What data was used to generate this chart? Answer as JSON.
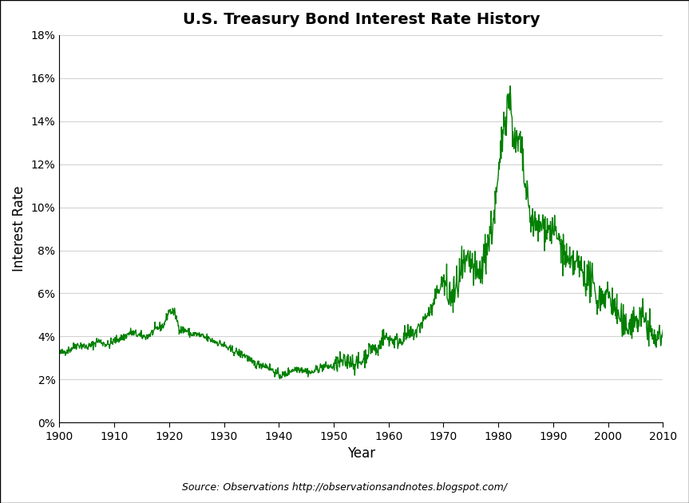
{
  "title": "U.S. Treasury Bond Interest Rate History",
  "xlabel": "Year",
  "ylabel": "Interest Rate",
  "source": "Source: Observations http://observationsandnotes.blogspot.com/",
  "line_color": "#008000",
  "bg_color": "#ffffff",
  "border_color": "#000000",
  "ylim": [
    0,
    0.18
  ],
  "xlim": [
    1900,
    2010
  ],
  "yticks": [
    0,
    0.02,
    0.04,
    0.06,
    0.08,
    0.1,
    0.12,
    0.14,
    0.16,
    0.18
  ],
  "xticks": [
    1900,
    1910,
    1920,
    1930,
    1940,
    1950,
    1960,
    1970,
    1980,
    1990,
    2000,
    2010
  ],
  "years": [
    1900,
    1901,
    1902,
    1903,
    1904,
    1905,
    1906,
    1907,
    1908,
    1909,
    1910,
    1911,
    1912,
    1913,
    1914,
    1915,
    1916,
    1917,
    1918,
    1919,
    1920,
    1921,
    1922,
    1923,
    1924,
    1925,
    1926,
    1927,
    1928,
    1929,
    1930,
    1931,
    1932,
    1933,
    1934,
    1935,
    1936,
    1937,
    1938,
    1939,
    1940,
    1941,
    1942,
    1943,
    1944,
    1945,
    1946,
    1947,
    1948,
    1949,
    1950,
    1951,
    1952,
    1953,
    1954,
    1955,
    1956,
    1957,
    1958,
    1959,
    1960,
    1961,
    1962,
    1963,
    1964,
    1965,
    1966,
    1967,
    1968,
    1969,
    1970,
    1971,
    1972,
    1973,
    1974,
    1975,
    1976,
    1977,
    1978,
    1979,
    1980,
    1981,
    1982,
    1983,
    1984,
    1985,
    1986,
    1987,
    1988,
    1989,
    1990,
    1991,
    1992,
    1993,
    1994,
    1995,
    1996,
    1997,
    1998,
    1999,
    2000,
    2001,
    2002,
    2003,
    2004,
    2005,
    2006,
    2007,
    2008,
    2009,
    2010
  ],
  "rates": [
    0.032,
    0.033,
    0.034,
    0.036,
    0.036,
    0.035,
    0.036,
    0.038,
    0.037,
    0.036,
    0.038,
    0.039,
    0.04,
    0.042,
    0.041,
    0.04,
    0.04,
    0.042,
    0.044,
    0.045,
    0.052,
    0.051,
    0.043,
    0.043,
    0.041,
    0.041,
    0.04,
    0.039,
    0.038,
    0.037,
    0.036,
    0.034,
    0.033,
    0.032,
    0.031,
    0.028,
    0.027,
    0.027,
    0.026,
    0.024,
    0.022,
    0.022,
    0.024,
    0.025,
    0.025,
    0.024,
    0.023,
    0.025,
    0.026,
    0.026,
    0.026,
    0.028,
    0.028,
    0.029,
    0.027,
    0.028,
    0.032,
    0.035,
    0.033,
    0.04,
    0.039,
    0.038,
    0.038,
    0.04,
    0.041,
    0.042,
    0.046,
    0.05,
    0.053,
    0.062,
    0.066,
    0.058,
    0.059,
    0.068,
    0.072,
    0.074,
    0.067,
    0.071,
    0.083,
    0.092,
    0.112,
    0.14,
    0.153,
    0.128,
    0.13,
    0.107,
    0.094,
    0.09,
    0.092,
    0.09,
    0.089,
    0.085,
    0.078,
    0.072,
    0.074,
    0.072,
    0.067,
    0.065,
    0.057,
    0.059,
    0.06,
    0.054,
    0.049,
    0.043,
    0.047,
    0.047,
    0.049,
    0.047,
    0.04,
    0.038,
    0.043
  ]
}
